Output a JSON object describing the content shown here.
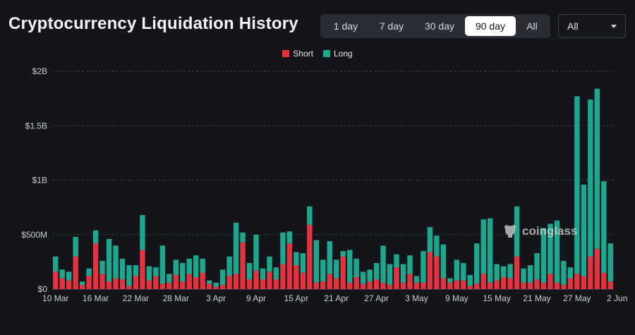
{
  "header": {
    "title": "Cryptocurrency Liquidation History",
    "range_options": [
      "1 day",
      "7 day",
      "30 day",
      "90 day",
      "All"
    ],
    "range_selected": "90 day",
    "filter_value": "All"
  },
  "watermark": "coinglass",
  "colors": {
    "short": "#e5323f",
    "long": "#1ba88f",
    "background": "#13151a"
  },
  "chart_data": {
    "type": "bar",
    "stacked": true,
    "title": "Cryptocurrency Liquidation History",
    "legend": [
      "Short",
      "Long"
    ],
    "legend_position": "top-center",
    "grid": "horizontal dashed",
    "ylim": [
      0,
      2000000000
    ],
    "y_ticks": [
      "$0",
      "$500M",
      "$1B",
      "$1.5B",
      "$2B"
    ],
    "x_ticks": [
      "10 Mar",
      "16 Mar",
      "22 Mar",
      "28 Mar",
      "3 Apr",
      "9 Apr",
      "15 Apr",
      "21 Apr",
      "27 Apr",
      "3 May",
      "9 May",
      "15 May",
      "21 May",
      "27 May",
      "2 Jun"
    ],
    "tick_every": 6,
    "unit": "USD (millions)",
    "series": [
      {
        "name": "Short",
        "values": [
          160,
          100,
          80,
          300,
          40,
          120,
          420,
          140,
          70,
          100,
          90,
          30,
          120,
          360,
          80,
          120,
          50,
          60,
          130,
          70,
          140,
          110,
          150,
          50,
          20,
          40,
          120,
          140,
          430,
          90,
          170,
          90,
          160,
          90,
          230,
          420,
          220,
          150,
          590,
          60,
          70,
          140,
          100,
          300,
          60,
          110,
          50,
          70,
          90,
          60,
          40,
          200,
          60,
          140,
          60,
          60,
          340,
          300,
          100,
          60,
          80,
          80,
          30,
          50,
          140,
          60,
          80,
          110,
          100,
          300,
          60,
          60,
          90,
          60,
          140,
          60,
          40,
          100,
          140,
          120,
          300,
          370,
          150,
          70
        ]
      },
      {
        "name": "Long",
        "values": [
          140,
          80,
          80,
          180,
          30,
          70,
          120,
          120,
          390,
          300,
          190,
          190,
          100,
          320,
          130,
          80,
          350,
          80,
          140,
          170,
          140,
          200,
          130,
          30,
          40,
          140,
          180,
          470,
          90,
          150,
          330,
          100,
          140,
          110,
          290,
          110,
          120,
          180,
          170,
          390,
          200,
          300,
          170,
          50,
          300,
          170,
          110,
          110,
          150,
          340,
          190,
          120,
          170,
          170,
          60,
          290,
          230,
          190,
          310,
          40,
          190,
          160,
          100,
          370,
          500,
          590,
          150,
          100,
          130,
          460,
          130,
          160,
          240,
          500,
          460,
          570,
          220,
          100,
          1630,
          840,
          1440,
          1470,
          840,
          350
        ]
      }
    ]
  }
}
